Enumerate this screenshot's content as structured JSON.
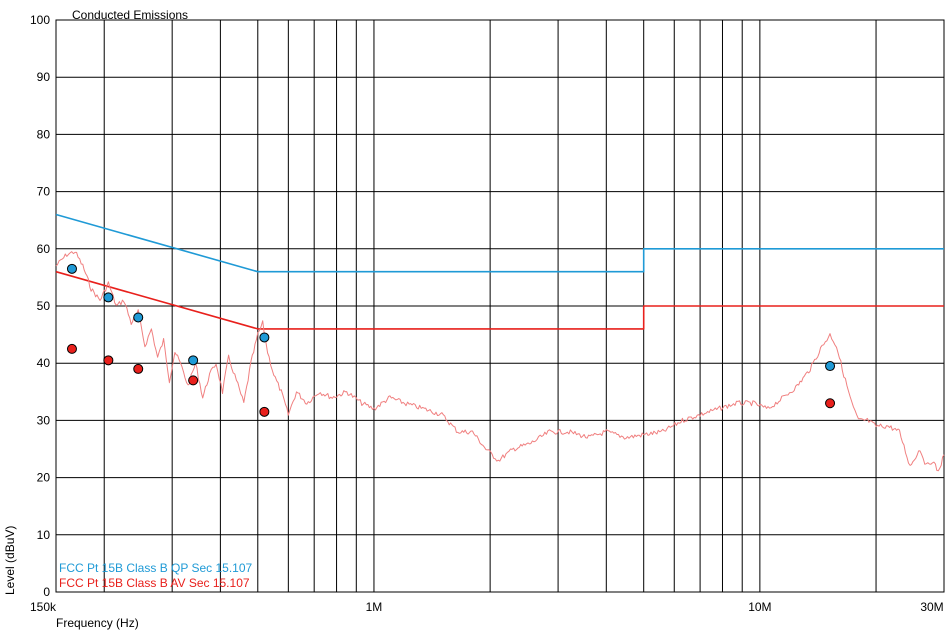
{
  "chart_data": {
    "type": "line",
    "title": "Conducted Emissions",
    "xlabel": "Frequency (Hz)",
    "ylabel": "Level (dBuV)",
    "xscale": "log",
    "xlim": [
      150000,
      30000000
    ],
    "ylim": [
      0,
      100
    ],
    "grid": true,
    "x_ticks": [
      {
        "value": 150000,
        "label": "150k"
      },
      {
        "value": 1000000,
        "label": "1M"
      },
      {
        "value": 10000000,
        "label": "10M"
      },
      {
        "value": 30000000,
        "label": "30M"
      }
    ],
    "y_ticks": [
      0,
      10,
      20,
      30,
      40,
      50,
      60,
      70,
      80,
      90,
      100
    ],
    "legend": {
      "placement": "bottom-left",
      "entries": [
        {
          "label": "FCC Pt 15B Class B QP Sec 15.107",
          "color": "#1f9ad6"
        },
        {
          "label": "FCC Pt 15B Class B AV Sec 15.107",
          "color": "#e8201c"
        }
      ]
    },
    "series": [
      {
        "name": "FCC Pt 15B Class B QP Sec 15.107",
        "kind": "limit",
        "color": "#1f9ad6",
        "points": [
          [
            150000,
            66
          ],
          [
            500000,
            56
          ],
          [
            5000000,
            56
          ],
          [
            5000000,
            60
          ],
          [
            30000000,
            60
          ]
        ]
      },
      {
        "name": "FCC Pt 15B Class B AV Sec 15.107",
        "kind": "limit",
        "color": "#e8201c",
        "points": [
          [
            150000,
            56
          ],
          [
            500000,
            46
          ],
          [
            5000000,
            46
          ],
          [
            5000000,
            50
          ],
          [
            30000000,
            50
          ]
        ]
      },
      {
        "kind": "trace",
        "color": "#f08080",
        "points": [
          [
            150000,
            57
          ],
          [
            160000,
            59
          ],
          [
            168000,
            59.5
          ],
          [
            176000,
            57
          ],
          [
            185000,
            53
          ],
          [
            195000,
            51
          ],
          [
            205000,
            54
          ],
          [
            215000,
            50
          ],
          [
            225000,
            51
          ],
          [
            235000,
            47
          ],
          [
            245000,
            49
          ],
          [
            255000,
            43
          ],
          [
            265000,
            46
          ],
          [
            275000,
            41
          ],
          [
            285000,
            44
          ],
          [
            295000,
            37
          ],
          [
            305000,
            42
          ],
          [
            315000,
            40
          ],
          [
            330000,
            36
          ],
          [
            345000,
            40
          ],
          [
            360000,
            34
          ],
          [
            375000,
            38
          ],
          [
            390000,
            40
          ],
          [
            405000,
            35
          ],
          [
            420000,
            41
          ],
          [
            440000,
            37
          ],
          [
            460000,
            33
          ],
          [
            480000,
            40
          ],
          [
            500000,
            45
          ],
          [
            515000,
            47
          ],
          [
            530000,
            42
          ],
          [
            550000,
            38
          ],
          [
            575000,
            35
          ],
          [
            600000,
            31
          ],
          [
            630000,
            35
          ],
          [
            670000,
            33
          ],
          [
            720000,
            35
          ],
          [
            780000,
            34
          ],
          [
            850000,
            35
          ],
          [
            930000,
            33
          ],
          [
            1000000,
            32
          ],
          [
            1100000,
            34
          ],
          [
            1200000,
            33
          ],
          [
            1350000,
            32
          ],
          [
            1500000,
            31
          ],
          [
            1650000,
            28
          ],
          [
            1800000,
            28
          ],
          [
            1950000,
            25
          ],
          [
            2100000,
            23
          ],
          [
            2300000,
            25
          ],
          [
            2550000,
            26
          ],
          [
            2850000,
            28
          ],
          [
            3200000,
            28
          ],
          [
            3600000,
            27
          ],
          [
            4000000,
            28
          ],
          [
            4500000,
            27
          ],
          [
            5000000,
            27.5
          ],
          [
            5600000,
            28
          ],
          [
            6300000,
            30
          ],
          [
            7000000,
            31
          ],
          [
            7800000,
            32
          ],
          [
            8700000,
            33
          ],
          [
            9600000,
            33
          ],
          [
            10500000,
            32
          ],
          [
            11500000,
            34
          ],
          [
            12500000,
            36
          ],
          [
            13500000,
            39
          ],
          [
            14500000,
            43
          ],
          [
            15200000,
            45
          ],
          [
            15800000,
            43
          ],
          [
            16500000,
            38
          ],
          [
            17300000,
            33
          ],
          [
            18000000,
            30
          ],
          [
            19000000,
            30
          ],
          [
            20000000,
            29
          ],
          [
            21500000,
            29
          ],
          [
            23000000,
            28
          ],
          [
            24500000,
            22
          ],
          [
            26000000,
            25
          ],
          [
            27000000,
            22
          ],
          [
            28000000,
            23
          ],
          [
            29000000,
            21
          ],
          [
            30000000,
            24
          ]
        ]
      }
    ],
    "markers": [
      {
        "kind": "QP",
        "color": "#1f9ad6",
        "points": [
          [
            165000,
            56.5
          ],
          [
            205000,
            51.5
          ],
          [
            245000,
            48
          ],
          [
            340000,
            40.5
          ],
          [
            520000,
            44.5
          ],
          [
            15200000,
            39.5
          ]
        ]
      },
      {
        "kind": "AV",
        "color": "#e8201c",
        "points": [
          [
            165000,
            42.5
          ],
          [
            205000,
            40.5
          ],
          [
            245000,
            39
          ],
          [
            340000,
            37
          ],
          [
            520000,
            31.5
          ],
          [
            15200000,
            33
          ]
        ]
      }
    ]
  }
}
